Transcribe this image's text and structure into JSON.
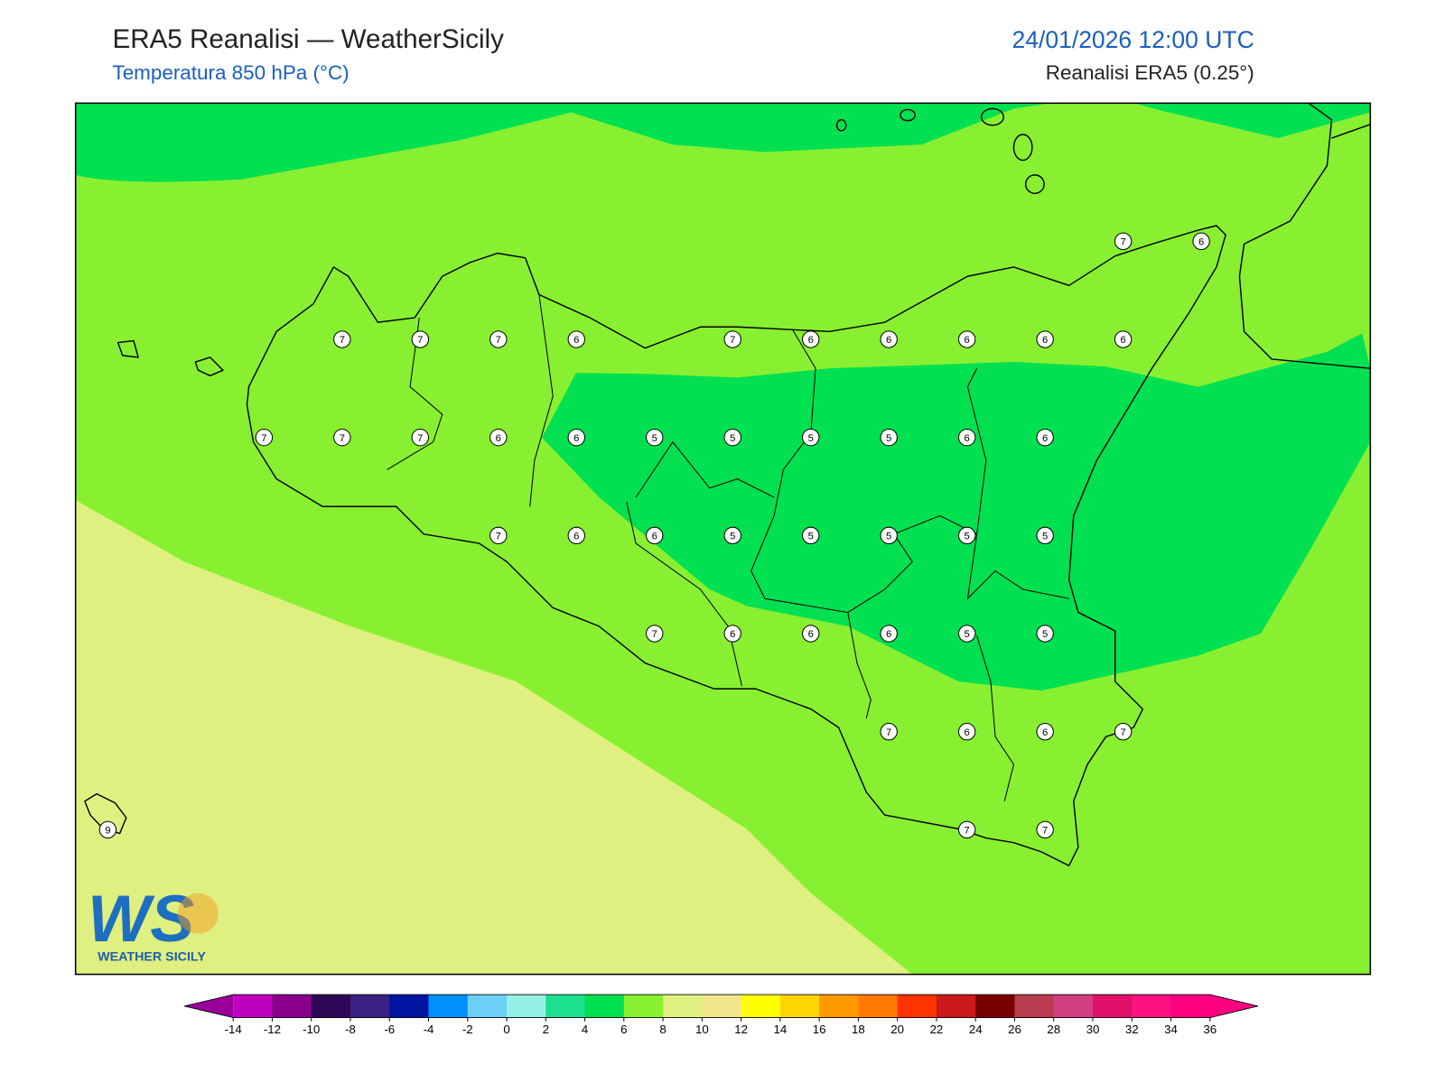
{
  "header": {
    "title": "ERA5 Reanalisi — WeatherSicily",
    "subtitle": "Temperatura 850 hPa (°C)",
    "date": "24/01/2026 12:00 UTC",
    "source": "Reanalisi ERA5 (0.25°)"
  },
  "logo": {
    "mark": "WS",
    "name": "WEATHER SICILY"
  },
  "stations": [
    7,
    6,
    7,
    7,
    7,
    6,
    7,
    6,
    6,
    6,
    6,
    6,
    7,
    7,
    7,
    6,
    6,
    5,
    5,
    5,
    5,
    6,
    6,
    7,
    6,
    6,
    5,
    5,
    5,
    5,
    5,
    7,
    6,
    6,
    6,
    5,
    5,
    7,
    6,
    6,
    7,
    9,
    7,
    7
  ],
  "colorbar": {
    "ticks": [
      -14,
      -12,
      -10,
      -8,
      -6,
      -4,
      -2,
      0,
      2,
      4,
      6,
      8,
      10,
      12,
      14,
      16,
      18,
      20,
      22,
      24,
      26,
      28,
      30,
      32,
      34,
      36
    ],
    "colors": [
      "#c000c0",
      "#8a008a",
      "#2e0854",
      "#3a2080",
      "#0015a0",
      "#0090ff",
      "#6ccff6",
      "#97f0e6",
      "#1de08f",
      "#00e050",
      "#88f030",
      "#dff080",
      "#f0e68c",
      "#ffff00",
      "#ffd500",
      "#ff9900",
      "#ff7a00",
      "#ff3300",
      "#cc1a1a",
      "#7a0000",
      "#b83b50",
      "#d04080",
      "#e0106a",
      "#ff1080",
      "#ff0080"
    ],
    "under_color": "#990099",
    "over_color": "#ff0080"
  }
}
